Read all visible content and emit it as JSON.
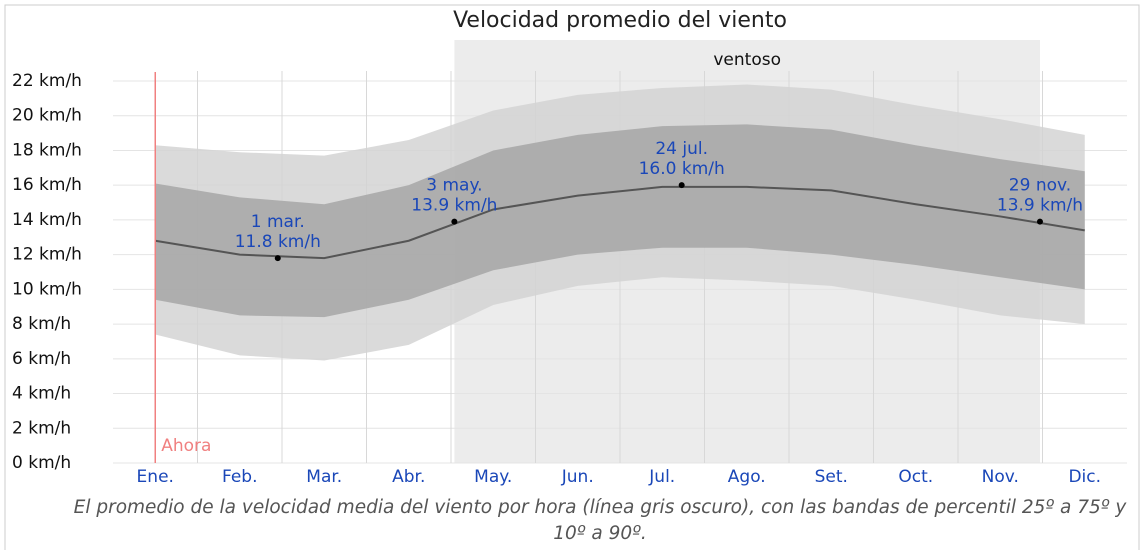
{
  "chart_data": {
    "type": "band-line",
    "title": "Velocidad promedio del viento",
    "caption": "El promedio de la velocidad media del viento por hora (línea gris oscuro), con las bandas de percentil 25º a 75º y 10º a 90º.",
    "categories": [
      "Ene.",
      "Feb.",
      "Mar.",
      "Abr.",
      "May.",
      "Jun.",
      "Jul.",
      "Ago.",
      "Set.",
      "Oct.",
      "Nov.",
      "Dic."
    ],
    "mean": [
      12.8,
      12.0,
      11.8,
      12.8,
      14.6,
      15.4,
      15.9,
      15.9,
      15.7,
      14.9,
      14.2,
      13.4
    ],
    "p25": [
      9.4,
      8.5,
      8.4,
      9.4,
      11.1,
      12.0,
      12.4,
      12.4,
      12.0,
      11.4,
      10.7,
      10.0
    ],
    "p75": [
      16.1,
      15.3,
      14.9,
      16.0,
      18.0,
      18.9,
      19.4,
      19.5,
      19.2,
      18.3,
      17.5,
      16.8
    ],
    "p10": [
      7.4,
      6.2,
      5.9,
      6.8,
      9.1,
      10.2,
      10.7,
      10.5,
      10.2,
      9.4,
      8.5,
      8.0
    ],
    "p90": [
      18.3,
      17.9,
      17.7,
      18.6,
      20.3,
      21.2,
      21.6,
      21.8,
      21.5,
      20.6,
      19.8,
      18.9
    ],
    "mean_color": "#555555",
    "inner_band_color": "#a6a6a6",
    "outer_band_color": "#d4d4d4",
    "ylim": [
      0,
      22
    ],
    "yticks": [
      {
        "value": 0,
        "label": "0 km/h"
      },
      {
        "value": 2,
        "label": "2 km/h"
      },
      {
        "value": 4,
        "label": "4 km/h"
      },
      {
        "value": 6,
        "label": "6 km/h"
      },
      {
        "value": 8,
        "label": "8 km/h"
      },
      {
        "value": 10,
        "label": "10 km/h"
      },
      {
        "value": 12,
        "label": "12 km/h"
      },
      {
        "value": 14,
        "label": "14 km/h"
      },
      {
        "value": 16,
        "label": "16 km/h"
      },
      {
        "value": 18,
        "label": "18 km/h"
      },
      {
        "value": 20,
        "label": "20 km/h"
      },
      {
        "value": 22,
        "label": "22 km/h"
      }
    ],
    "grid": true,
    "annotations": [
      {
        "date": "1 mar.",
        "x": 1.95,
        "value": 11.8,
        "value_label": "11.8 km/h"
      },
      {
        "date": "3 may.",
        "x": 4.04,
        "value": 13.9,
        "value_label": "13.9 km/h"
      },
      {
        "date": "24 jul.",
        "x": 6.73,
        "value": 16.0,
        "value_label": "16.0 km/h"
      },
      {
        "date": "29 nov.",
        "x": 10.97,
        "value": 13.9,
        "value_label": "13.9 km/h"
      }
    ],
    "region": {
      "label": "ventoso",
      "x": [
        4.04,
        10.97
      ]
    },
    "now": {
      "label": "Ahora",
      "x": 0.5,
      "color": "#f08080"
    }
  }
}
